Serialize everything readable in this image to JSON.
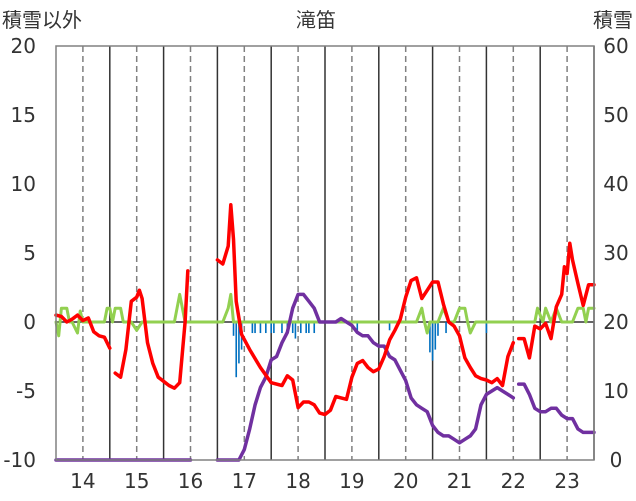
{
  "chart_data": {
    "type": "line",
    "title": "滝笛",
    "ylabel_left": "積雪以外",
    "ylabel_right": "積雪",
    "ylim_left": [
      -10,
      20
    ],
    "ylim_right": [
      0,
      60
    ],
    "yticks_left": [
      "20",
      "15",
      "10",
      "5",
      "0",
      "-5",
      "-10"
    ],
    "yticks_right": [
      "60",
      "50",
      "40",
      "30",
      "20",
      "10",
      "0"
    ],
    "xlim": [
      13.5,
      23.5
    ],
    "x_tick_labels": [
      "14",
      "15",
      "16",
      "17",
      "18",
      "19",
      "20",
      "21",
      "22",
      "23"
    ],
    "x_tick_values": [
      14,
      15,
      16,
      17,
      18,
      19,
      20,
      21,
      22,
      23
    ],
    "grid": "vertical-dashed",
    "colors": {
      "temperature": "#ff0000",
      "wind": "#92d050",
      "precipitation": "#0070c0",
      "snow_depth": "#7030a0",
      "grid": "#808080",
      "day_boundary": "#333333"
    },
    "series": [
      {
        "role": "temperature",
        "axis": "left",
        "segments": [
          [
            [
              13.5,
              0.5
            ],
            [
              13.6,
              0.4
            ],
            [
              13.7,
              0.0
            ],
            [
              13.8,
              0.2
            ],
            [
              13.9,
              0.5
            ],
            [
              14.0,
              0.1
            ],
            [
              14.1,
              0.3
            ],
            [
              14.2,
              -0.7
            ],
            [
              14.3,
              -1.0
            ],
            [
              14.4,
              -1.1
            ],
            [
              14.5,
              -1.9
            ]
          ],
          [
            [
              14.6,
              -3.7
            ],
            [
              14.7,
              -4.0
            ],
            [
              14.8,
              -2.0
            ],
            [
              14.9,
              1.5
            ],
            [
              15.0,
              1.8
            ],
            [
              15.05,
              2.3
            ],
            [
              15.1,
              1.7
            ],
            [
              15.2,
              -1.5
            ],
            [
              15.3,
              -3.0
            ],
            [
              15.4,
              -4.0
            ],
            [
              15.5,
              -4.3
            ],
            [
              15.6,
              -4.6
            ],
            [
              15.7,
              -4.8
            ],
            [
              15.8,
              -4.4
            ],
            [
              15.9,
              0.0
            ],
            [
              15.95,
              3.7
            ]
          ],
          [
            [
              16.5,
              4.5
            ],
            [
              16.6,
              4.2
            ],
            [
              16.7,
              5.5
            ],
            [
              16.75,
              8.5
            ],
            [
              16.8,
              6.0
            ],
            [
              16.85,
              1.5
            ],
            [
              16.95,
              -0.9
            ],
            [
              17.1,
              -2.0
            ],
            [
              17.3,
              -3.3
            ],
            [
              17.5,
              -4.4
            ],
            [
              17.7,
              -4.6
            ],
            [
              17.8,
              -3.9
            ],
            [
              17.9,
              -4.2
            ],
            [
              18.0,
              -6.2
            ],
            [
              18.1,
              -5.8
            ],
            [
              18.2,
              -5.8
            ],
            [
              18.3,
              -6.0
            ],
            [
              18.4,
              -6.6
            ],
            [
              18.5,
              -6.7
            ],
            [
              18.6,
              -6.4
            ],
            [
              18.7,
              -5.4
            ],
            [
              18.8,
              -5.5
            ],
            [
              18.9,
              -5.6
            ],
            [
              19.0,
              -4.0
            ],
            [
              19.1,
              -3.0
            ],
            [
              19.2,
              -2.8
            ],
            [
              19.3,
              -3.3
            ],
            [
              19.4,
              -3.6
            ],
            [
              19.5,
              -3.4
            ],
            [
              19.6,
              -2.5
            ],
            [
              19.7,
              -1.3
            ],
            [
              19.8,
              -0.6
            ],
            [
              19.9,
              0.2
            ],
            [
              20.0,
              1.8
            ],
            [
              20.1,
              3.0
            ],
            [
              20.2,
              3.2
            ],
            [
              20.3,
              1.7
            ],
            [
              20.4,
              2.3
            ],
            [
              20.5,
              2.9
            ],
            [
              20.6,
              2.9
            ],
            [
              20.7,
              1.3
            ],
            [
              20.8,
              0.0
            ],
            [
              20.9,
              -0.3
            ],
            [
              21.0,
              -1.0
            ],
            [
              21.1,
              -2.6
            ],
            [
              21.2,
              -3.3
            ],
            [
              21.3,
              -3.9
            ],
            [
              21.4,
              -4.1
            ],
            [
              21.5,
              -4.2
            ],
            [
              21.6,
              -4.4
            ],
            [
              21.7,
              -4.1
            ],
            [
              21.8,
              -4.6
            ],
            [
              21.9,
              -2.5
            ],
            [
              22.0,
              -1.5
            ]
          ],
          [
            [
              22.1,
              -1.2
            ],
            [
              22.2,
              -1.2
            ],
            [
              22.3,
              -2.6
            ],
            [
              22.4,
              -0.3
            ],
            [
              22.5,
              -0.5
            ],
            [
              22.6,
              -0.1
            ],
            [
              22.7,
              -1.2
            ],
            [
              22.8,
              1.1
            ],
            [
              22.9,
              2.0
            ],
            [
              22.95,
              4.0
            ],
            [
              23.0,
              3.5
            ],
            [
              23.05,
              5.7
            ],
            [
              23.1,
              4.5
            ],
            [
              23.2,
              2.8
            ],
            [
              23.3,
              1.2
            ],
            [
              23.4,
              2.7
            ],
            [
              23.5,
              2.7
            ]
          ]
        ]
      },
      {
        "role": "wind",
        "axis": "left",
        "segments": [
          [
            [
              13.5,
              0.0
            ],
            [
              13.55,
              -1.0
            ],
            [
              13.6,
              1.0
            ],
            [
              13.7,
              1.0
            ],
            [
              13.75,
              0.0
            ],
            [
              13.8,
              0.0
            ],
            [
              13.9,
              -0.8
            ],
            [
              13.95,
              0.8
            ],
            [
              14.0,
              0.0
            ],
            [
              14.1,
              0.0
            ],
            [
              14.2,
              0.0
            ],
            [
              14.3,
              0.0
            ],
            [
              14.4,
              0.0
            ],
            [
              14.45,
              1.0
            ],
            [
              14.5,
              1.0
            ],
            [
              14.55,
              0.0
            ],
            [
              14.6,
              1.0
            ],
            [
              14.7,
              1.0
            ],
            [
              14.75,
              0.0
            ],
            [
              14.8,
              0.0
            ],
            [
              14.9,
              0.0
            ],
            [
              15.0,
              -0.6
            ],
            [
              15.1,
              0.0
            ],
            [
              15.2,
              0.0
            ],
            [
              15.3,
              0.0
            ],
            [
              15.4,
              0.0
            ],
            [
              15.5,
              0.0
            ],
            [
              15.6,
              0.0
            ],
            [
              15.7,
              0.0
            ],
            [
              15.8,
              2.0
            ],
            [
              15.9,
              0.0
            ],
            [
              16.0,
              0.0
            ],
            [
              16.5,
              0.0
            ],
            [
              16.6,
              0.0
            ],
            [
              16.7,
              1.0
            ],
            [
              16.75,
              2.0
            ],
            [
              16.8,
              0.0
            ],
            [
              16.9,
              0.0
            ],
            [
              17.0,
              0.0
            ],
            [
              17.5,
              0.0
            ],
            [
              18.0,
              0.0
            ],
            [
              18.5,
              0.0
            ],
            [
              19.0,
              0.0
            ],
            [
              19.5,
              0.0
            ],
            [
              20.0,
              0.0
            ],
            [
              20.2,
              0.0
            ],
            [
              20.3,
              1.0
            ],
            [
              20.35,
              0.0
            ],
            [
              20.4,
              -0.8
            ],
            [
              20.45,
              0.0
            ],
            [
              20.5,
              0.0
            ],
            [
              20.6,
              0.0
            ],
            [
              20.7,
              1.0
            ],
            [
              20.8,
              0.0
            ],
            [
              20.9,
              0.0
            ],
            [
              21.0,
              1.0
            ],
            [
              21.1,
              1.0
            ],
            [
              21.15,
              0.0
            ],
            [
              21.2,
              -0.8
            ],
            [
              21.3,
              0.0
            ],
            [
              21.5,
              0.0
            ],
            [
              21.8,
              0.0
            ],
            [
              22.0,
              0.0
            ],
            [
              22.3,
              0.0
            ],
            [
              22.4,
              0.0
            ],
            [
              22.45,
              1.0
            ],
            [
              22.55,
              0.0
            ],
            [
              22.6,
              1.0
            ],
            [
              22.7,
              0.0
            ],
            [
              22.8,
              1.0
            ],
            [
              22.9,
              0.0
            ],
            [
              23.0,
              0.0
            ],
            [
              23.1,
              0.0
            ],
            [
              23.2,
              1.0
            ],
            [
              23.3,
              1.0
            ],
            [
              23.35,
              0.0
            ],
            [
              23.4,
              1.0
            ],
            [
              23.5,
              1.0
            ]
          ]
        ]
      },
      {
        "role": "snow_depth",
        "axis": "right",
        "segments": [
          [
            [
              13.5,
              0.0
            ],
            [
              14.0,
              0.0
            ],
            [
              14.5,
              0.0
            ],
            [
              15.0,
              0.0
            ],
            [
              15.5,
              0.0
            ],
            [
              16.0,
              0.0
            ]
          ],
          [
            [
              16.5,
              0.0
            ],
            [
              16.7,
              0.0
            ],
            [
              16.9,
              0.0
            ],
            [
              17.0,
              1.5
            ],
            [
              17.1,
              4.5
            ],
            [
              17.2,
              8.0
            ],
            [
              17.3,
              10.5
            ],
            [
              17.4,
              12.0
            ],
            [
              17.5,
              14.5
            ],
            [
              17.6,
              15.0
            ],
            [
              17.7,
              17.0
            ],
            [
              17.8,
              18.5
            ],
            [
              17.9,
              22.0
            ],
            [
              18.0,
              24.0
            ],
            [
              18.1,
              24.0
            ],
            [
              18.2,
              23.0
            ],
            [
              18.3,
              22.0
            ],
            [
              18.4,
              20.0
            ],
            [
              18.5,
              20.0
            ],
            [
              18.6,
              20.0
            ],
            [
              18.7,
              20.0
            ],
            [
              18.8,
              20.5
            ],
            [
              18.9,
              20.0
            ],
            [
              19.0,
              19.5
            ],
            [
              19.1,
              18.5
            ],
            [
              19.2,
              18.0
            ],
            [
              19.3,
              18.0
            ],
            [
              19.4,
              17.0
            ],
            [
              19.5,
              16.5
            ],
            [
              19.6,
              16.5
            ],
            [
              19.7,
              15.0
            ],
            [
              19.8,
              14.5
            ],
            [
              19.9,
              13.0
            ],
            [
              20.0,
              11.5
            ],
            [
              20.1,
              9.0
            ],
            [
              20.2,
              8.0
            ],
            [
              20.3,
              7.5
            ],
            [
              20.4,
              7.0
            ],
            [
              20.5,
              5.0
            ],
            [
              20.6,
              4.0
            ],
            [
              20.7,
              3.5
            ],
            [
              20.8,
              3.5
            ],
            [
              20.9,
              3.0
            ],
            [
              21.0,
              2.5
            ],
            [
              21.1,
              3.0
            ],
            [
              21.2,
              3.5
            ],
            [
              21.3,
              4.5
            ],
            [
              21.4,
              8.0
            ],
            [
              21.5,
              9.5
            ],
            [
              21.6,
              10.0
            ],
            [
              21.7,
              10.5
            ],
            [
              21.8,
              10.0
            ],
            [
              21.9,
              9.5
            ],
            [
              22.0,
              9.0
            ]
          ],
          [
            [
              22.1,
              11.0
            ],
            [
              22.2,
              11.0
            ],
            [
              22.3,
              9.5
            ],
            [
              22.4,
              7.5
            ],
            [
              22.5,
              7.0
            ],
            [
              22.6,
              7.0
            ],
            [
              22.7,
              7.5
            ],
            [
              22.8,
              7.5
            ],
            [
              22.9,
              6.5
            ],
            [
              23.0,
              6.0
            ],
            [
              23.1,
              6.0
            ],
            [
              23.2,
              4.5
            ],
            [
              23.3,
              4.0
            ],
            [
              23.4,
              4.0
            ],
            [
              23.5,
              4.0
            ]
          ]
        ]
      }
    ],
    "precipitation_bars": {
      "axis": "left",
      "values": [
        [
          16.8,
          -1.0
        ],
        [
          16.85,
          -4.0
        ],
        [
          16.9,
          -3.0
        ],
        [
          16.95,
          -2.0
        ],
        [
          17.15,
          -0.8
        ],
        [
          17.2,
          -0.8
        ],
        [
          17.3,
          -0.8
        ],
        [
          17.4,
          -0.8
        ],
        [
          17.5,
          -0.8
        ],
        [
          17.55,
          -0.8
        ],
        [
          17.7,
          -0.8
        ],
        [
          17.8,
          -0.8
        ],
        [
          17.9,
          -0.8
        ],
        [
          17.95,
          -1.2
        ],
        [
          18.05,
          -0.8
        ],
        [
          18.15,
          -0.8
        ],
        [
          18.2,
          -0.8
        ],
        [
          18.3,
          -0.8
        ],
        [
          19.1,
          -0.8
        ],
        [
          19.7,
          -0.6
        ],
        [
          20.45,
          -2.2
        ],
        [
          20.5,
          -2.8
        ],
        [
          20.55,
          -2.0
        ],
        [
          20.6,
          -1.0
        ],
        [
          20.75,
          -0.8
        ],
        [
          21.5,
          -0.8
        ]
      ]
    }
  }
}
